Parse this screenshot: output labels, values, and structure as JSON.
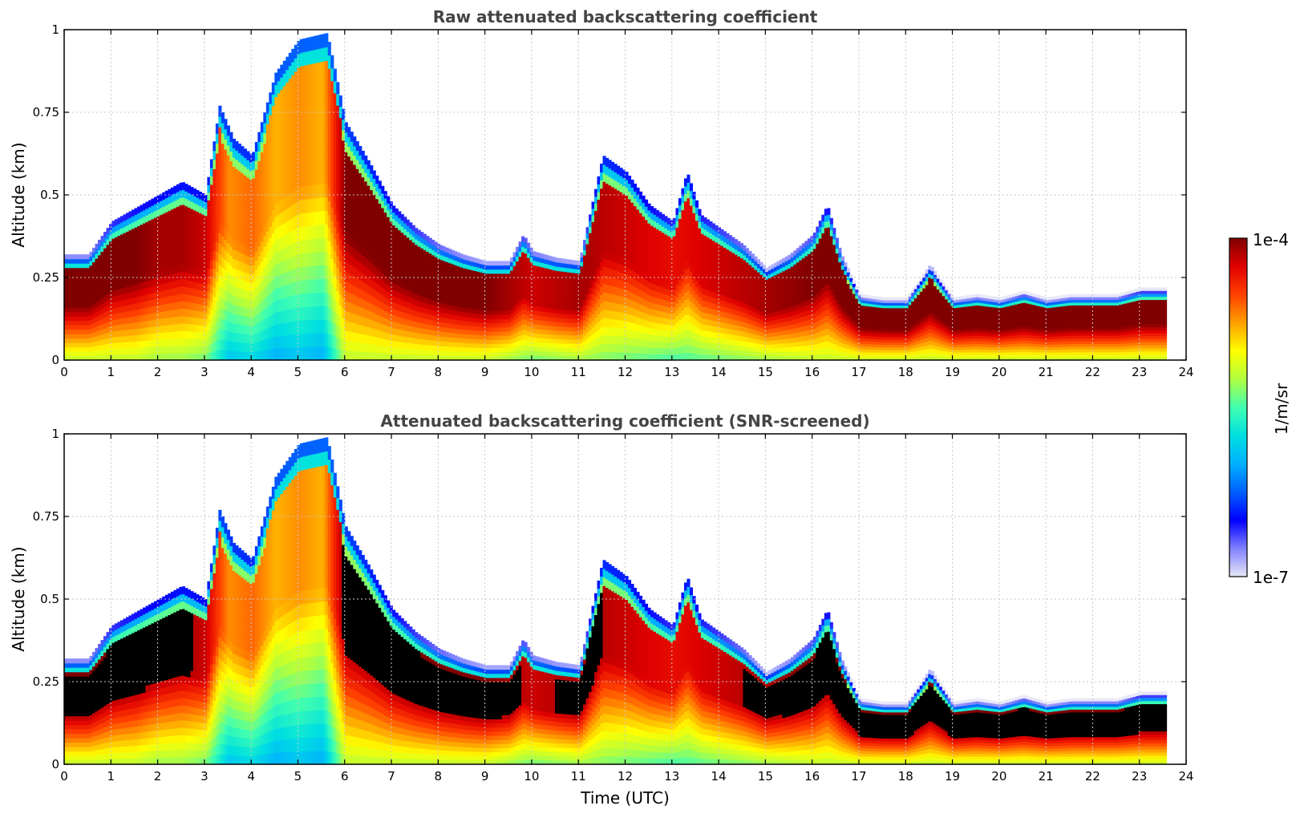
{
  "colors": {
    "colormap": [
      "#e8e8f8",
      "#8080ff",
      "#0000ff",
      "#0060ff",
      "#00b0ff",
      "#00e0e0",
      "#40ffb0",
      "#b0ff40",
      "#ffff00",
      "#ffa000",
      "#ff4000",
      "#e00000",
      "#800000"
    ],
    "screened_fill": "#000000",
    "grid": "#c8c8c8"
  },
  "xlabel": "Time (UTC)",
  "colorbar": {
    "max_label": "1e-4",
    "min_label": "1e-7",
    "unit_label": "1/m/sr",
    "vmin": 1e-07,
    "vmax": 0.0001,
    "scale": "log"
  },
  "chart_data": [
    {
      "type": "heatmap",
      "title": "Raw attenuated backscattering coefficient",
      "xlabel": "",
      "ylabel": "Altitude (km)",
      "xlim": [
        0,
        24
      ],
      "ylim": [
        0,
        1
      ],
      "x_ticks": [
        "0",
        "1",
        "2",
        "3",
        "4",
        "5",
        "6",
        "7",
        "8",
        "9",
        "10",
        "11",
        "12",
        "13",
        "14",
        "15",
        "16",
        "17",
        "18",
        "19",
        "20",
        "21",
        "22",
        "23",
        "24"
      ],
      "y_ticks": [
        "0",
        "0.25",
        "0.5",
        "0.75",
        "1"
      ],
      "grid": true,
      "data_until": 23.55,
      "boundary_layer_top_km": {
        "time": [
          0,
          0.5,
          1,
          1.5,
          2,
          2.5,
          3,
          3.3,
          3.6,
          4,
          4.5,
          5,
          5.6,
          6,
          6.5,
          7,
          7.5,
          8,
          8.5,
          9,
          9.5,
          9.8,
          10,
          10.5,
          11,
          11.5,
          12,
          12.5,
          13,
          13.3,
          13.6,
          14,
          14.5,
          15,
          15.5,
          16,
          16.3,
          16.6,
          17,
          17.5,
          18,
          18.5,
          19,
          19.5,
          20,
          20.5,
          21,
          21.5,
          22,
          22.5,
          23,
          23.55
        ],
        "top": [
          0.3,
          0.3,
          0.4,
          0.44,
          0.48,
          0.52,
          0.48,
          0.75,
          0.65,
          0.6,
          0.85,
          0.95,
          0.97,
          0.7,
          0.58,
          0.45,
          0.38,
          0.33,
          0.3,
          0.28,
          0.28,
          0.36,
          0.31,
          0.29,
          0.28,
          0.6,
          0.55,
          0.45,
          0.4,
          0.55,
          0.42,
          0.38,
          0.33,
          0.26,
          0.3,
          0.36,
          0.45,
          0.3,
          0.18,
          0.17,
          0.17,
          0.27,
          0.17,
          0.18,
          0.17,
          0.19,
          0.17,
          0.18,
          0.18,
          0.18,
          0.2,
          0.2
        ]
      },
      "log10_backscatter_core": {
        "time": [
          0,
          0.5,
          1,
          1.5,
          2,
          2.5,
          3,
          3.5,
          4,
          4.5,
          5,
          5.5,
          6,
          6.5,
          7,
          8,
          9,
          10,
          11,
          12,
          13,
          14,
          15,
          16,
          17,
          18,
          19,
          20,
          21,
          22,
          23,
          23.55
        ],
        "value": [
          -4.0,
          -4.0,
          -4.0,
          -4.0,
          -4.1,
          -4.1,
          -4.2,
          -4.7,
          -4.6,
          -4.8,
          -4.7,
          -4.8,
          -4.0,
          -4.0,
          -4.0,
          -4.0,
          -4.0,
          -4.2,
          -4.1,
          -4.2,
          -4.3,
          -4.2,
          -4.1,
          -4.0,
          -4.0,
          -4.0,
          -4.0,
          -4.0,
          -4.0,
          -4.0,
          -4.0,
          -4.0
        ]
      }
    },
    {
      "type": "heatmap",
      "title": "Attenuated backscattering coefficient (SNR-screened)",
      "xlabel": "Time (UTC)",
      "ylabel": "Altitude (km)",
      "xlim": [
        0,
        24
      ],
      "ylim": [
        0,
        1
      ],
      "x_ticks": [
        "0",
        "1",
        "2",
        "3",
        "4",
        "5",
        "6",
        "7",
        "8",
        "9",
        "10",
        "11",
        "12",
        "13",
        "14",
        "15",
        "16",
        "17",
        "18",
        "19",
        "20",
        "21",
        "22",
        "23",
        "24"
      ],
      "y_ticks": [
        "0",
        "0.25",
        "0.5",
        "0.75",
        "1"
      ],
      "grid": true,
      "data_until": 23.55,
      "screened_value_color": "black",
      "boundary_layer_top_km": {
        "time": [
          0,
          0.5,
          1,
          1.5,
          2,
          2.5,
          3,
          3.3,
          3.6,
          4,
          4.5,
          5,
          5.6,
          6,
          6.5,
          7,
          7.5,
          8,
          8.5,
          9,
          9.5,
          9.8,
          10,
          10.5,
          11,
          11.5,
          12,
          12.5,
          13,
          13.3,
          13.6,
          14,
          14.5,
          15,
          15.5,
          16,
          16.3,
          16.6,
          17,
          17.5,
          18,
          18.5,
          19,
          19.5,
          20,
          20.5,
          21,
          21.5,
          22,
          22.5,
          23,
          23.55
        ],
        "top": [
          0.3,
          0.3,
          0.4,
          0.44,
          0.48,
          0.52,
          0.48,
          0.75,
          0.65,
          0.6,
          0.85,
          0.95,
          0.97,
          0.7,
          0.58,
          0.45,
          0.38,
          0.33,
          0.3,
          0.28,
          0.28,
          0.36,
          0.31,
          0.29,
          0.28,
          0.6,
          0.55,
          0.45,
          0.4,
          0.55,
          0.42,
          0.38,
          0.33,
          0.26,
          0.3,
          0.36,
          0.45,
          0.3,
          0.18,
          0.17,
          0.17,
          0.27,
          0.17,
          0.18,
          0.17,
          0.19,
          0.17,
          0.18,
          0.18,
          0.18,
          0.2,
          0.2
        ]
      }
    }
  ]
}
